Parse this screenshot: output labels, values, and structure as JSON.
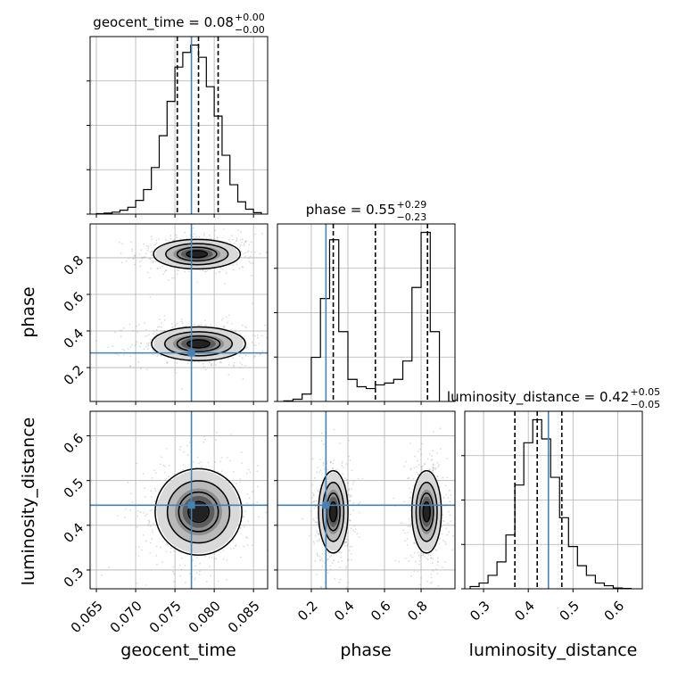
{
  "chart_data": {
    "type": "corner",
    "parameters": [
      "geocent_time",
      "phase",
      "luminosity_distance"
    ],
    "grid": true,
    "truth_color": "#4682b4",
    "marginal_titles": [
      {
        "param": "geocent_time",
        "label": "geocent_time = 0.08",
        "plus": "+0.00",
        "minus": "−0.00"
      },
      {
        "param": "phase",
        "label": "phase = 0.55",
        "plus": "+0.29",
        "minus": "−0.23"
      },
      {
        "param": "luminosity_distance",
        "label": "luminosity_distance = 0.42",
        "plus": "+0.05",
        "minus": "−0.05"
      }
    ],
    "axes": {
      "geocent_time": {
        "xlabel": "geocent_time",
        "range": [
          0.0642,
          0.0868
        ],
        "ticks": [
          0.065,
          0.07,
          0.075,
          0.08,
          0.085
        ],
        "tick_labels": [
          "0.065",
          "0.070",
          "0.075",
          "0.080",
          "0.085"
        ]
      },
      "phase": {
        "xlabel": "phase",
        "ylabel": "phase",
        "range": [
          0.015,
          0.985
        ],
        "ticks": [
          0.2,
          0.4,
          0.6,
          0.8
        ],
        "tick_labels": [
          "0.2",
          "0.4",
          "0.6",
          "0.8"
        ]
      },
      "luminosity_distance": {
        "xlabel": "luminosity_distance",
        "ylabel": "luminosity_distance",
        "range": [
          0.258,
          0.655
        ],
        "ticks": [
          0.3,
          0.4,
          0.5,
          0.6
        ],
        "tick_labels": [
          "0.3",
          "0.4",
          "0.5",
          "0.6"
        ]
      }
    },
    "truths": {
      "geocent_time": 0.0771,
      "phase": 0.28,
      "luminosity_distance": 0.445
    },
    "quantiles": {
      "geocent_time": [
        0.0753,
        0.078,
        0.0805
      ],
      "phase": [
        0.32,
        0.55,
        0.835
      ],
      "luminosity_distance": [
        0.37,
        0.42,
        0.475
      ]
    },
    "histograms": {
      "geocent_time": {
        "edges": [
          0.065,
          0.066,
          0.067,
          0.068,
          0.069,
          0.07,
          0.071,
          0.072,
          0.073,
          0.074,
          0.075,
          0.076,
          0.077,
          0.078,
          0.079,
          0.08,
          0.081,
          0.082,
          0.083,
          0.084,
          0.085,
          0.086
        ],
        "counts": [
          1,
          2,
          4,
          8,
          14,
          28,
          50,
          95,
          160,
          230,
          300,
          330,
          345,
          320,
          260,
          200,
          120,
          60,
          25,
          10,
          3
        ]
      },
      "phase": {
        "edges": [
          0.05,
          0.1,
          0.15,
          0.2,
          0.25,
          0.3,
          0.35,
          0.4,
          0.45,
          0.5,
          0.55,
          0.6,
          0.65,
          0.7,
          0.75,
          0.8,
          0.85,
          0.9
        ],
        "counts": [
          3,
          12,
          40,
          240,
          560,
          880,
          380,
          120,
          80,
          70,
          90,
          100,
          120,
          220,
          620,
          920,
          380
        ]
      },
      "luminosity_distance": {
        "edges": [
          0.27,
          0.29,
          0.31,
          0.33,
          0.35,
          0.37,
          0.39,
          0.41,
          0.43,
          0.45,
          0.47,
          0.49,
          0.51,
          0.53,
          0.55,
          0.57,
          0.59,
          0.61,
          0.63
        ],
        "counts": [
          6,
          15,
          35,
          70,
          140,
          270,
          380,
          440,
          390,
          290,
          185,
          110,
          60,
          35,
          15,
          8,
          2,
          1
        ]
      }
    },
    "density_modes": [
      {
        "x": "geocent_time",
        "y": "phase",
        "centers": [
          {
            "x": 0.0778,
            "y": 0.82,
            "sx": 0.0024,
            "sy": 0.035
          },
          {
            "x": 0.078,
            "y": 0.33,
            "sx": 0.0026,
            "sy": 0.04
          }
        ]
      },
      {
        "x": "geocent_time",
        "y": "luminosity_distance",
        "centers": [
          {
            "x": 0.078,
            "y": 0.43,
            "sx": 0.0024,
            "sy": 0.042
          }
        ]
      },
      {
        "x": "phase",
        "y": "luminosity_distance",
        "centers": [
          {
            "x": 0.32,
            "y": 0.43,
            "sx": 0.035,
            "sy": 0.04
          },
          {
            "x": 0.83,
            "y": 0.43,
            "sx": 0.035,
            "sy": 0.04
          }
        ]
      }
    ]
  }
}
